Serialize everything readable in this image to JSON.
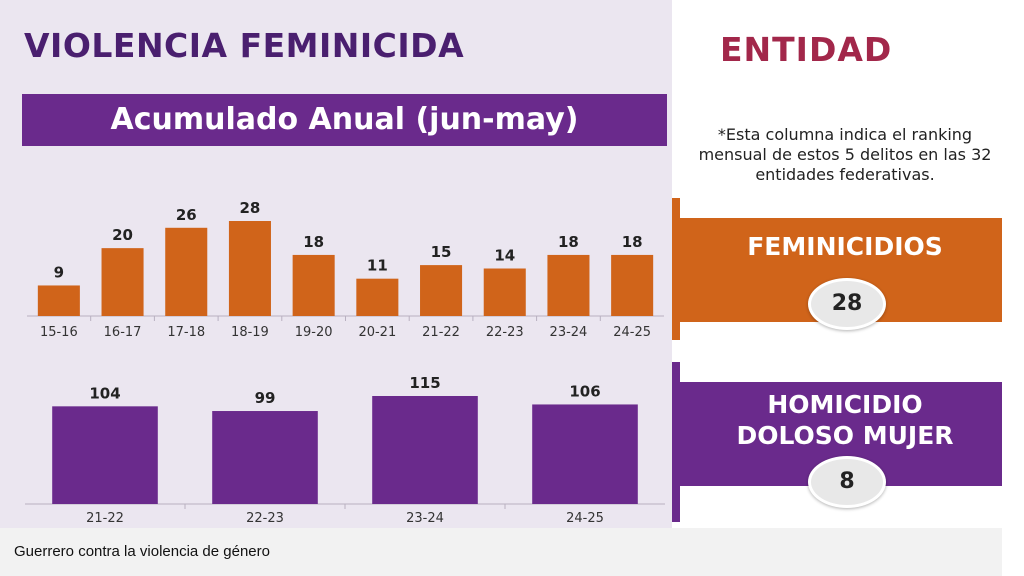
{
  "header": {
    "title": "VIOLENCIA FEMINICIDA",
    "subtitle": "Acumulado Anual (jun-may)"
  },
  "entity": {
    "title": "ENTIDAD",
    "note": "*Esta columna indica el ranking mensual de estos 5 delitos en las 32 entidades federativas.",
    "feminicidios": {
      "label": "FEMINICIDIOS",
      "rank": "28"
    },
    "homicidio": {
      "label_line1": "HOMICIDIO",
      "label_line2": "DOLOSO MUJER",
      "rank": "8"
    }
  },
  "caption": "Guerrero contra la violencia de género",
  "colors": {
    "orange": "#d0641a",
    "purple": "#6a2a8c",
    "title_purple": "#4a1f6f",
    "entity_red": "#a2274a"
  },
  "chart_data": [
    {
      "type": "bar",
      "categories": [
        "15-16",
        "16-17",
        "17-18",
        "18-19",
        "19-20",
        "20-21",
        "21-22",
        "22-23",
        "23-24",
        "24-25"
      ],
      "values": [
        9,
        20,
        26,
        28,
        18,
        11,
        15,
        14,
        18,
        18
      ],
      "ylim": [
        0,
        28
      ],
      "color": "#d0641a"
    },
    {
      "type": "bar",
      "categories": [
        "21-22",
        "22-23",
        "23-24",
        "24-25"
      ],
      "values": [
        104,
        99,
        115,
        106
      ],
      "ylim": [
        0,
        115
      ],
      "color": "#6a2a8c"
    }
  ]
}
